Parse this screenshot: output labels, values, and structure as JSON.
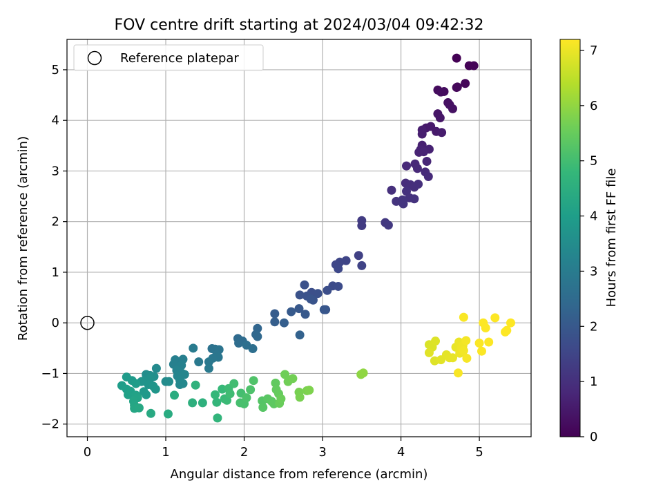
{
  "chart_data": {
    "type": "scatter",
    "title": "FOV centre drift starting at 2024/03/04 09:42:32",
    "xlabel": "Angular distance from reference (arcmin)",
    "ylabel": "Rotation from reference (arcmin)",
    "xlim": [
      -0.26,
      5.66
    ],
    "ylim": [
      -2.25,
      5.6
    ],
    "xticks": [
      0,
      1,
      2,
      3,
      4,
      5
    ],
    "yticks": [
      -2,
      -1,
      0,
      1,
      2,
      3,
      4,
      5
    ],
    "grid": true,
    "legend": {
      "placement": "top-left",
      "entries": [
        "Reference platepar"
      ]
    },
    "reference_point": {
      "x": 0,
      "y": 0,
      "marker": "open-circle",
      "color": "#000000"
    },
    "colorbar": {
      "label": "Hours from first FF file",
      "range": [
        0,
        7.2
      ],
      "ticks": [
        0,
        1,
        2,
        3,
        4,
        5,
        6,
        7
      ],
      "colormap": "viridis",
      "stops": [
        "#440154",
        "#482878",
        "#3e4989",
        "#31688e",
        "#26828e",
        "#1f9e89",
        "#35b779",
        "#6ece58",
        "#b5de2b",
        "#fde725"
      ]
    },
    "points": [
      {
        "x": 4.71,
        "y": 5.23,
        "t": 0.02
      },
      {
        "x": 4.87,
        "y": 5.08,
        "t": 0.05
      },
      {
        "x": 4.93,
        "y": 5.08,
        "t": 0.07
      },
      {
        "x": 4.82,
        "y": 4.73,
        "t": 0.1
      },
      {
        "x": 4.71,
        "y": 4.65,
        "t": 0.12
      },
      {
        "x": 4.72,
        "y": 4.66,
        "t": 0.14
      },
      {
        "x": 4.47,
        "y": 4.6,
        "t": 0.2
      },
      {
        "x": 4.55,
        "y": 4.57,
        "t": 0.22
      },
      {
        "x": 4.51,
        "y": 4.56,
        "t": 0.24
      },
      {
        "x": 4.6,
        "y": 4.35,
        "t": 0.3
      },
      {
        "x": 4.62,
        "y": 4.31,
        "t": 0.32
      },
      {
        "x": 4.66,
        "y": 4.23,
        "t": 0.34
      },
      {
        "x": 4.47,
        "y": 4.13,
        "t": 0.4
      },
      {
        "x": 4.5,
        "y": 4.05,
        "t": 0.43
      },
      {
        "x": 4.32,
        "y": 3.85,
        "t": 0.48
      },
      {
        "x": 4.38,
        "y": 3.88,
        "t": 0.5
      },
      {
        "x": 4.45,
        "y": 3.78,
        "t": 0.52
      },
      {
        "x": 4.52,
        "y": 3.76,
        "t": 0.55
      },
      {
        "x": 4.27,
        "y": 3.81,
        "t": 0.57
      },
      {
        "x": 4.27,
        "y": 3.73,
        "t": 0.6
      },
      {
        "x": 4.27,
        "y": 3.51,
        "t": 0.65
      },
      {
        "x": 4.36,
        "y": 3.43,
        "t": 0.68
      },
      {
        "x": 4.25,
        "y": 3.42,
        "t": 0.7
      },
      {
        "x": 4.23,
        "y": 3.37,
        "t": 0.72
      },
      {
        "x": 4.29,
        "y": 3.38,
        "t": 0.74
      },
      {
        "x": 4.33,
        "y": 3.19,
        "t": 0.78
      },
      {
        "x": 4.18,
        "y": 3.14,
        "t": 0.8
      },
      {
        "x": 4.21,
        "y": 3.05,
        "t": 0.82
      },
      {
        "x": 4.07,
        "y": 3.1,
        "t": 0.84
      },
      {
        "x": 4.31,
        "y": 2.98,
        "t": 0.86
      },
      {
        "x": 4.35,
        "y": 2.89,
        "t": 0.88
      },
      {
        "x": 4.06,
        "y": 2.76,
        "t": 0.92
      },
      {
        "x": 4.12,
        "y": 2.73,
        "t": 0.94
      },
      {
        "x": 4.17,
        "y": 2.68,
        "t": 0.96
      },
      {
        "x": 4.22,
        "y": 2.74,
        "t": 0.98
      },
      {
        "x": 3.88,
        "y": 2.62,
        "t": 1.0
      },
      {
        "x": 4.07,
        "y": 2.6,
        "t": 1.02
      },
      {
        "x": 4.11,
        "y": 2.47,
        "t": 1.04
      },
      {
        "x": 4.17,
        "y": 2.45,
        "t": 1.06
      },
      {
        "x": 3.94,
        "y": 2.4,
        "t": 1.08
      },
      {
        "x": 4.02,
        "y": 2.43,
        "t": 1.1
      },
      {
        "x": 4.03,
        "y": 2.35,
        "t": 1.12
      },
      {
        "x": 3.8,
        "y": 1.98,
        "t": 1.18
      },
      {
        "x": 3.84,
        "y": 1.93,
        "t": 1.2
      },
      {
        "x": 3.5,
        "y": 2.02,
        "t": 1.25
      },
      {
        "x": 3.5,
        "y": 1.92,
        "t": 1.27
      },
      {
        "x": 3.46,
        "y": 1.33,
        "t": 1.4
      },
      {
        "x": 3.5,
        "y": 1.13,
        "t": 1.45
      },
      {
        "x": 3.3,
        "y": 1.23,
        "t": 1.5
      },
      {
        "x": 3.22,
        "y": 1.2,
        "t": 1.52
      },
      {
        "x": 3.17,
        "y": 1.15,
        "t": 1.55
      },
      {
        "x": 3.2,
        "y": 1.07,
        "t": 1.58
      },
      {
        "x": 3.13,
        "y": 0.73,
        "t": 1.65
      },
      {
        "x": 3.2,
        "y": 0.72,
        "t": 1.68
      },
      {
        "x": 3.06,
        "y": 0.64,
        "t": 1.72
      },
      {
        "x": 2.86,
        "y": 0.6,
        "t": 1.75
      },
      {
        "x": 2.94,
        "y": 0.58,
        "t": 1.78
      },
      {
        "x": 2.77,
        "y": 0.75,
        "t": 1.8
      },
      {
        "x": 2.71,
        "y": 0.55,
        "t": 1.82
      },
      {
        "x": 2.8,
        "y": 0.53,
        "t": 1.84
      },
      {
        "x": 2.88,
        "y": 0.45,
        "t": 1.86
      },
      {
        "x": 2.85,
        "y": 0.47,
        "t": 1.88
      },
      {
        "x": 3.04,
        "y": 0.26,
        "t": 1.92
      },
      {
        "x": 3.02,
        "y": 0.26,
        "t": 1.94
      },
      {
        "x": 2.7,
        "y": 0.28,
        "t": 1.98
      },
      {
        "x": 2.78,
        "y": 0.17,
        "t": 2.0
      },
      {
        "x": 2.6,
        "y": 0.22,
        "t": 2.05
      },
      {
        "x": 2.39,
        "y": 0.18,
        "t": 2.1
      },
      {
        "x": 2.39,
        "y": 0.02,
        "t": 2.14
      },
      {
        "x": 2.51,
        "y": 0.0,
        "t": 2.18
      },
      {
        "x": 2.71,
        "y": -0.24,
        "t": 2.25
      },
      {
        "x": 2.17,
        "y": -0.11,
        "t": 2.35
      },
      {
        "x": 2.15,
        "y": -0.23,
        "t": 2.4
      },
      {
        "x": 2.17,
        "y": -0.27,
        "t": 2.43
      },
      {
        "x": 1.92,
        "y": -0.31,
        "t": 2.5
      },
      {
        "x": 1.98,
        "y": -0.36,
        "t": 2.53
      },
      {
        "x": 1.93,
        "y": -0.4,
        "t": 2.56
      },
      {
        "x": 2.03,
        "y": -0.44,
        "t": 2.6
      },
      {
        "x": 2.11,
        "y": -0.51,
        "t": 2.62
      },
      {
        "x": 1.59,
        "y": -0.51,
        "t": 2.7
      },
      {
        "x": 1.63,
        "y": -0.52,
        "t": 2.73
      },
      {
        "x": 1.68,
        "y": -0.53,
        "t": 2.76
      },
      {
        "x": 1.65,
        "y": -0.63,
        "t": 2.8
      },
      {
        "x": 1.67,
        "y": -0.68,
        "t": 2.83
      },
      {
        "x": 1.6,
        "y": -0.7,
        "t": 2.86
      },
      {
        "x": 1.55,
        "y": -0.77,
        "t": 2.9
      },
      {
        "x": 1.42,
        "y": -0.77,
        "t": 2.93
      },
      {
        "x": 1.55,
        "y": -0.9,
        "t": 2.96
      },
      {
        "x": 1.35,
        "y": -0.5,
        "t": 3.0
      },
      {
        "x": 1.12,
        "y": -0.73,
        "t": 3.1
      },
      {
        "x": 1.22,
        "y": -0.72,
        "t": 3.12
      },
      {
        "x": 1.1,
        "y": -0.82,
        "t": 3.15
      },
      {
        "x": 1.2,
        "y": -0.84,
        "t": 3.18
      },
      {
        "x": 1.14,
        "y": -0.94,
        "t": 3.22
      },
      {
        "x": 1.21,
        "y": -1.0,
        "t": 3.25
      },
      {
        "x": 1.15,
        "y": -1.05,
        "t": 3.28
      },
      {
        "x": 1.24,
        "y": -1.02,
        "t": 3.3
      },
      {
        "x": 1.18,
        "y": -1.13,
        "t": 3.33
      },
      {
        "x": 1.22,
        "y": -1.2,
        "t": 3.36
      },
      {
        "x": 1.18,
        "y": -1.22,
        "t": 3.38
      },
      {
        "x": 0.88,
        "y": -0.9,
        "t": 3.42
      },
      {
        "x": 1.0,
        "y": -1.16,
        "t": 3.45
      },
      {
        "x": 1.04,
        "y": -1.16,
        "t": 3.48
      },
      {
        "x": 0.75,
        "y": -1.02,
        "t": 3.52
      },
      {
        "x": 0.8,
        "y": -1.04,
        "t": 3.55
      },
      {
        "x": 0.85,
        "y": -1.06,
        "t": 3.58
      },
      {
        "x": 0.8,
        "y": -1.1,
        "t": 3.62
      },
      {
        "x": 0.72,
        "y": -1.15,
        "t": 3.65
      },
      {
        "x": 0.69,
        "y": -1.16,
        "t": 3.68
      },
      {
        "x": 0.78,
        "y": -1.22,
        "t": 3.72
      },
      {
        "x": 0.84,
        "y": -1.25,
        "t": 3.75
      },
      {
        "x": 0.87,
        "y": -1.31,
        "t": 3.78
      },
      {
        "x": 0.72,
        "y": -1.36,
        "t": 3.82
      },
      {
        "x": 0.75,
        "y": -1.42,
        "t": 3.85
      },
      {
        "x": 0.57,
        "y": -1.14,
        "t": 3.88
      },
      {
        "x": 0.5,
        "y": -1.07,
        "t": 3.92
      },
      {
        "x": 0.62,
        "y": -1.2,
        "t": 3.95
      },
      {
        "x": 0.44,
        "y": -1.24,
        "t": 3.98
      },
      {
        "x": 0.5,
        "y": -1.31,
        "t": 4.02
      },
      {
        "x": 0.55,
        "y": -1.35,
        "t": 4.05
      },
      {
        "x": 0.52,
        "y": -1.42,
        "t": 4.08
      },
      {
        "x": 0.62,
        "y": -1.43,
        "t": 4.12
      },
      {
        "x": 0.64,
        "y": -1.48,
        "t": 4.15
      },
      {
        "x": 0.59,
        "y": -1.55,
        "t": 4.18
      },
      {
        "x": 0.6,
        "y": -1.63,
        "t": 4.22
      },
      {
        "x": 0.6,
        "y": -1.69,
        "t": 4.25
      },
      {
        "x": 0.66,
        "y": -1.68,
        "t": 4.28
      },
      {
        "x": 0.81,
        "y": -1.79,
        "t": 4.35
      },
      {
        "x": 1.03,
        "y": -1.8,
        "t": 4.4
      },
      {
        "x": 1.11,
        "y": -1.43,
        "t": 4.45
      },
      {
        "x": 1.34,
        "y": -1.58,
        "t": 4.55
      },
      {
        "x": 1.47,
        "y": -1.58,
        "t": 4.58
      },
      {
        "x": 1.38,
        "y": -1.23,
        "t": 4.62
      },
      {
        "x": 1.66,
        "y": -1.88,
        "t": 4.7
      },
      {
        "x": 1.65,
        "y": -1.57,
        "t": 4.75
      },
      {
        "x": 1.63,
        "y": -1.42,
        "t": 4.78
      },
      {
        "x": 1.72,
        "y": -1.31,
        "t": 4.82
      },
      {
        "x": 1.75,
        "y": -1.5,
        "t": 4.85
      },
      {
        "x": 1.78,
        "y": -1.53,
        "t": 4.88
      },
      {
        "x": 1.8,
        "y": -1.3,
        "t": 4.92
      },
      {
        "x": 1.82,
        "y": -1.4,
        "t": 4.95
      },
      {
        "x": 1.87,
        "y": -1.2,
        "t": 4.98
      },
      {
        "x": 1.96,
        "y": -1.39,
        "t": 5.02
      },
      {
        "x": 1.95,
        "y": -1.58,
        "t": 5.05
      },
      {
        "x": 2.0,
        "y": -1.6,
        "t": 5.08
      },
      {
        "x": 2.03,
        "y": -1.48,
        "t": 5.12
      },
      {
        "x": 2.08,
        "y": -1.32,
        "t": 5.15
      },
      {
        "x": 2.12,
        "y": -1.14,
        "t": 5.18
      },
      {
        "x": 2.23,
        "y": -1.54,
        "t": 5.25
      },
      {
        "x": 2.24,
        "y": -1.67,
        "t": 5.28
      },
      {
        "x": 2.3,
        "y": -1.5,
        "t": 5.32
      },
      {
        "x": 2.35,
        "y": -1.55,
        "t": 5.35
      },
      {
        "x": 2.38,
        "y": -1.6,
        "t": 5.38
      },
      {
        "x": 2.4,
        "y": -1.19,
        "t": 5.42
      },
      {
        "x": 2.41,
        "y": -1.32,
        "t": 5.45
      },
      {
        "x": 2.44,
        "y": -1.4,
        "t": 5.48
      },
      {
        "x": 2.45,
        "y": -1.59,
        "t": 5.52
      },
      {
        "x": 2.47,
        "y": -1.5,
        "t": 5.55
      },
      {
        "x": 2.52,
        "y": -1.02,
        "t": 5.6
      },
      {
        "x": 2.56,
        "y": -1.16,
        "t": 5.62
      },
      {
        "x": 2.62,
        "y": -1.1,
        "t": 5.65
      },
      {
        "x": 2.7,
        "y": -1.37,
        "t": 5.7
      },
      {
        "x": 2.71,
        "y": -1.47,
        "t": 5.72
      },
      {
        "x": 2.8,
        "y": -1.34,
        "t": 5.75
      },
      {
        "x": 2.83,
        "y": -1.33,
        "t": 5.78
      },
      {
        "x": 3.49,
        "y": -1.02,
        "t": 5.95
      },
      {
        "x": 3.52,
        "y": -0.99,
        "t": 5.98
      },
      {
        "x": 4.36,
        "y": -0.43,
        "t": 6.8
      },
      {
        "x": 4.4,
        "y": -0.48,
        "t": 6.82
      },
      {
        "x": 4.44,
        "y": -0.36,
        "t": 6.84
      },
      {
        "x": 4.43,
        "y": -0.75,
        "t": 6.86
      },
      {
        "x": 4.36,
        "y": -0.59,
        "t": 6.88
      },
      {
        "x": 4.51,
        "y": -0.73,
        "t": 6.9
      },
      {
        "x": 4.58,
        "y": -0.63,
        "t": 6.92
      },
      {
        "x": 4.62,
        "y": -0.69,
        "t": 6.94
      },
      {
        "x": 4.66,
        "y": -0.69,
        "t": 6.96
      },
      {
        "x": 4.7,
        "y": -0.48,
        "t": 6.98
      },
      {
        "x": 4.74,
        "y": -0.38,
        "t": 7.0
      },
      {
        "x": 4.75,
        "y": -0.6,
        "t": 7.02
      },
      {
        "x": 4.77,
        "y": -0.5,
        "t": 7.04
      },
      {
        "x": 4.79,
        "y": -0.45,
        "t": 7.06
      },
      {
        "x": 4.8,
        "y": -0.55,
        "t": 7.08
      },
      {
        "x": 4.83,
        "y": -0.35,
        "t": 7.1
      },
      {
        "x": 4.84,
        "y": -0.7,
        "t": 7.12
      },
      {
        "x": 4.73,
        "y": -0.99,
        "t": 7.14
      },
      {
        "x": 4.8,
        "y": 0.11,
        "t": 7.16
      },
      {
        "x": 5.0,
        "y": -0.4,
        "t": 7.18
      },
      {
        "x": 5.03,
        "y": -0.56,
        "t": 7.18
      },
      {
        "x": 5.05,
        "y": 0.0,
        "t": 7.19
      },
      {
        "x": 5.08,
        "y": -0.1,
        "t": 7.19
      },
      {
        "x": 5.12,
        "y": -0.38,
        "t": 7.19
      },
      {
        "x": 5.2,
        "y": 0.1,
        "t": 7.2
      },
      {
        "x": 5.33,
        "y": -0.18,
        "t": 7.2
      },
      {
        "x": 5.35,
        "y": -0.15,
        "t": 7.2
      },
      {
        "x": 5.4,
        "y": 0.0,
        "t": 7.2
      }
    ]
  }
}
